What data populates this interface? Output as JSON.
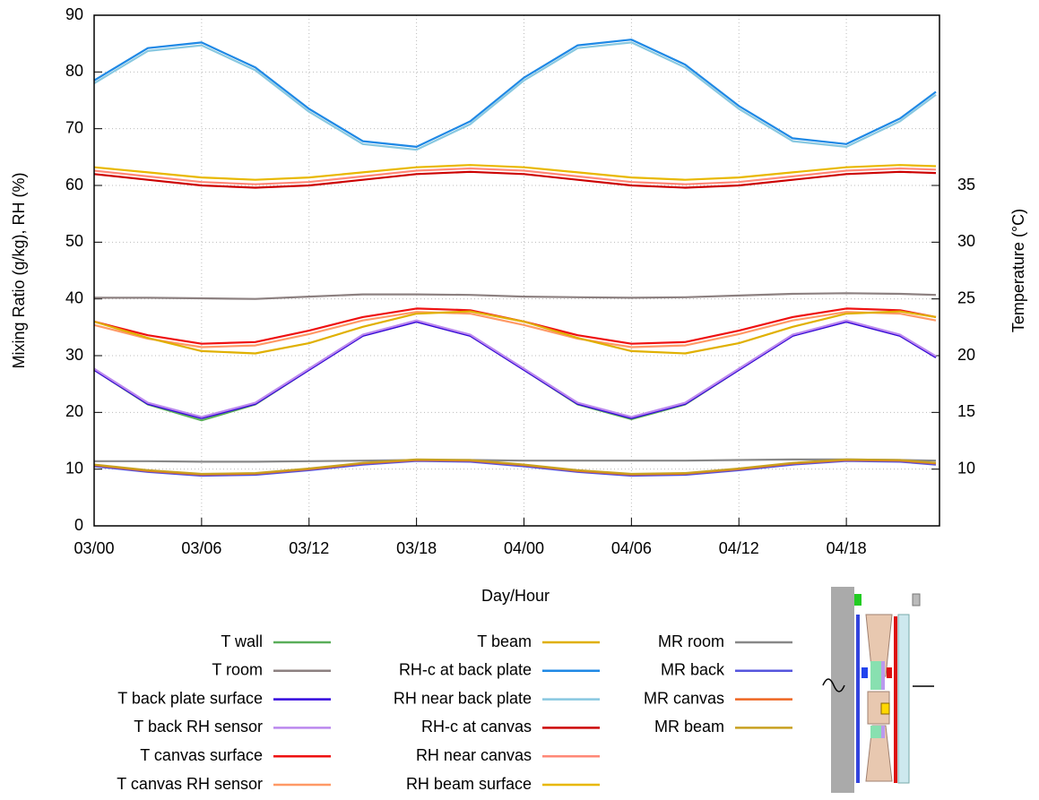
{
  "chart_data": {
    "type": "line",
    "xlabel": "Day/Hour",
    "ylabel": "Mixing Ratio (g/kg), RH (%)",
    "y2label": "Temperature (°C)",
    "x": [
      0,
      3,
      6,
      9,
      12,
      15,
      18,
      21,
      24,
      27,
      30,
      33,
      36,
      39,
      42,
      45,
      47
    ],
    "xlim": [
      0,
      47.2
    ],
    "xticks": [
      {
        "value": 0,
        "label": "03/00"
      },
      {
        "value": 6,
        "label": "03/06"
      },
      {
        "value": 12,
        "label": "03/12"
      },
      {
        "value": 18,
        "label": "03/18"
      },
      {
        "value": 24,
        "label": "04/00"
      },
      {
        "value": 30,
        "label": "04/06"
      },
      {
        "value": 36,
        "label": "04/12"
      },
      {
        "value": 42,
        "label": "04/18"
      }
    ],
    "ylim": [
      0,
      90
    ],
    "yticks": [
      0,
      10,
      20,
      30,
      40,
      50,
      60,
      70,
      80,
      90
    ],
    "y2lim": [
      5,
      50
    ],
    "y2ticks": [
      10,
      15,
      20,
      25,
      30,
      35
    ],
    "grid": true,
    "series": [
      {
        "name": "T wall",
        "color": "#5aae5a",
        "axis": "y2",
        "values": [
          18.75,
          15.7,
          14.3,
          15.7,
          18.75,
          21.75,
          23.0,
          21.75,
          18.75,
          15.7,
          14.4,
          15.7,
          18.75,
          21.75,
          23.0,
          21.75,
          19.85
        ]
      },
      {
        "name": "T room",
        "color": "#8c8080",
        "axis": "y2",
        "values": [
          25.1,
          25.1,
          25.05,
          25.0,
          25.2,
          25.4,
          25.4,
          25.35,
          25.2,
          25.15,
          25.1,
          25.15,
          25.3,
          25.45,
          25.5,
          25.45,
          25.35
        ]
      },
      {
        "name": "T back plate surface",
        "color": "#3300dd",
        "axis": "y2",
        "values": [
          18.75,
          15.75,
          14.5,
          15.75,
          18.75,
          21.75,
          23.0,
          21.75,
          18.75,
          15.75,
          14.5,
          15.75,
          18.75,
          21.75,
          23.0,
          21.75,
          19.85
        ]
      },
      {
        "name": "T back RH sensor",
        "color": "#bb88ee",
        "axis": "y2",
        "values": [
          18.85,
          15.85,
          14.6,
          15.85,
          18.85,
          21.85,
          23.1,
          21.85,
          18.85,
          15.85,
          14.6,
          15.85,
          18.85,
          21.85,
          23.1,
          21.85,
          19.95
        ]
      },
      {
        "name": "T canvas surface",
        "color": "#ee1111",
        "axis": "y2",
        "values": [
          23.0,
          21.8,
          21.05,
          21.2,
          22.2,
          23.4,
          24.15,
          24.0,
          23.0,
          21.8,
          21.05,
          21.2,
          22.2,
          23.4,
          24.15,
          24.0,
          23.4
        ]
      },
      {
        "name": "T canvas RH sensor",
        "color": "#ff9966",
        "axis": "y2",
        "values": [
          22.7,
          21.5,
          20.75,
          20.9,
          21.9,
          23.1,
          23.85,
          23.7,
          22.7,
          21.5,
          20.75,
          20.9,
          21.9,
          23.1,
          23.85,
          23.7,
          23.1
        ]
      },
      {
        "name": "T beam",
        "color": "#e0b000",
        "axis": "y2",
        "values": [
          23.0,
          21.56,
          20.4,
          20.2,
          21.1,
          22.54,
          23.7,
          23.9,
          23.0,
          21.56,
          20.4,
          20.2,
          21.1,
          22.54,
          23.7,
          23.9,
          23.4
        ]
      },
      {
        "name": "RH-c at back plate",
        "color": "#1e88e5",
        "values": [
          78.5,
          84.2,
          85.2,
          80.8,
          73.5,
          67.8,
          66.8,
          71.3,
          79.0,
          84.7,
          85.7,
          81.3,
          74.0,
          68.3,
          67.3,
          71.8,
          76.5
        ]
      },
      {
        "name": "RH near back plate",
        "color": "#88c8e0",
        "values": [
          78.0,
          83.7,
          84.7,
          80.3,
          73.0,
          67.3,
          66.3,
          70.8,
          78.5,
          84.2,
          85.2,
          80.8,
          73.5,
          67.8,
          66.8,
          71.3,
          76.0
        ]
      },
      {
        "name": "RH-c at canvas",
        "color": "#cc0000",
        "values": [
          62.0,
          61.0,
          60.0,
          59.6,
          60.0,
          61.0,
          62.0,
          62.4,
          62.0,
          61.0,
          60.0,
          59.6,
          60.0,
          61.0,
          62.0,
          62.4,
          62.2
        ]
      },
      {
        "name": "RH near canvas",
        "color": "#ff8877",
        "values": [
          62.6,
          61.6,
          60.6,
          60.2,
          60.6,
          61.6,
          62.6,
          63.0,
          62.6,
          61.6,
          60.6,
          60.2,
          60.6,
          61.6,
          62.6,
          63.0,
          62.8
        ]
      },
      {
        "name": "RH beam surface",
        "color": "#e8b800",
        "values": [
          63.2,
          62.3,
          61.4,
          61.0,
          61.4,
          62.3,
          63.2,
          63.6,
          63.2,
          62.3,
          61.4,
          61.0,
          61.4,
          62.3,
          63.2,
          63.6,
          63.4
        ]
      },
      {
        "name": "MR room",
        "color": "#888888",
        "values": [
          11.4,
          11.4,
          11.3,
          11.3,
          11.4,
          11.5,
          11.6,
          11.6,
          11.5,
          11.5,
          11.5,
          11.5,
          11.6,
          11.7,
          11.7,
          11.6,
          11.5
        ]
      },
      {
        "name": "MR back",
        "color": "#5555dd",
        "values": [
          10.5,
          9.5,
          8.85,
          9.0,
          9.8,
          10.8,
          11.45,
          11.3,
          10.5,
          9.5,
          8.85,
          9.0,
          9.8,
          10.8,
          11.45,
          11.3,
          10.8
        ]
      },
      {
        "name": "MR canvas",
        "color": "#ee6622",
        "values": [
          10.7,
          9.7,
          9.05,
          9.2,
          10.0,
          11.0,
          11.6,
          11.5,
          10.7,
          9.7,
          9.05,
          9.2,
          10.0,
          11.0,
          11.6,
          11.5,
          11.0
        ]
      },
      {
        "name": "MR beam",
        "color": "#c8a020",
        "values": [
          10.8,
          9.8,
          9.15,
          9.3,
          10.1,
          11.1,
          11.7,
          11.6,
          10.8,
          9.8,
          9.15,
          9.3,
          10.1,
          11.1,
          11.7,
          11.6,
          11.1
        ]
      }
    ]
  }
}
